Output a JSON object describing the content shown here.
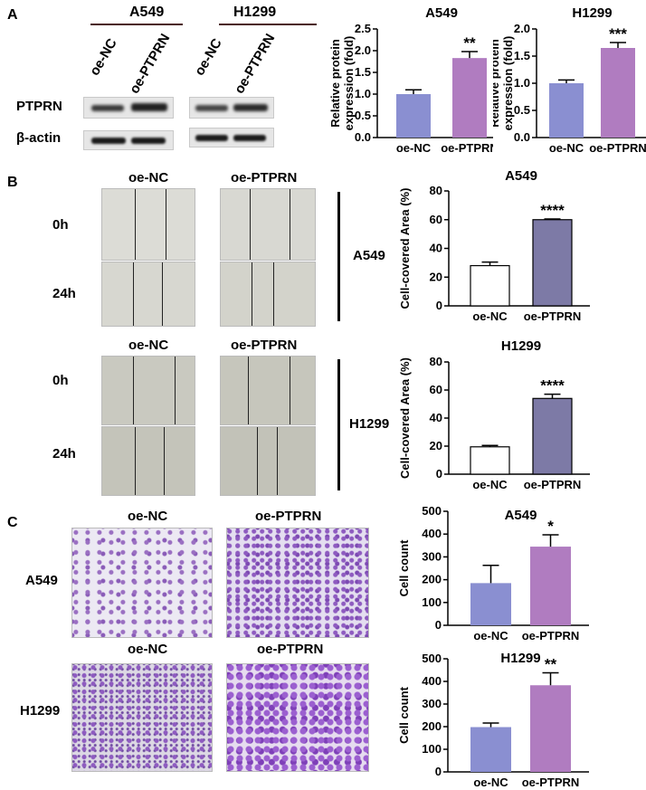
{
  "panelA": {
    "letter": "A",
    "lines": [
      "A549",
      "H1299"
    ],
    "lanes": [
      "oe-NC",
      "oe-PTPRN",
      "oe-NC",
      "oe-PTPRN"
    ],
    "rows": [
      "PTPRN",
      "β-actin"
    ]
  },
  "panelB": {
    "letter": "B",
    "groups": [
      "oe-NC",
      "oe-PTPRN"
    ],
    "times": [
      "0h",
      "24h"
    ],
    "lines": [
      "A549",
      "H1299"
    ]
  },
  "panelC": {
    "letter": "C",
    "groups": [
      "oe-NC",
      "oe-PTPRN"
    ],
    "lines": [
      "A549",
      "H1299"
    ]
  },
  "chart_data": [
    {
      "id": "a549-protein",
      "type": "bar",
      "title": "A549",
      "categories": [
        "oe-NC",
        "oe-PTPRN"
      ],
      "values": [
        1.0,
        1.83
      ],
      "errors": [
        0.1,
        0.15
      ],
      "ylabel": "Relative protein expression (fold)",
      "ylim": [
        0,
        2.5
      ],
      "ticks": [
        "0.0",
        "0.5",
        "1.0",
        "1.5",
        "2.0",
        "2.5"
      ],
      "significance": "**",
      "colors": [
        "#8a8fd1",
        "#b07cc0"
      ],
      "style": "filled"
    },
    {
      "id": "h1299-protein",
      "type": "bar",
      "title": "H1299",
      "categories": [
        "oe-NC",
        "oe-PTPRN"
      ],
      "values": [
        1.0,
        1.65
      ],
      "errors": [
        0.06,
        0.1
      ],
      "ylabel": "Relative protein expression (fold)",
      "ylim": [
        0,
        2.0
      ],
      "ticks": [
        "0.0",
        "0.5",
        "1.0",
        "1.5",
        "2.0"
      ],
      "significance": "***",
      "colors": [
        "#8a8fd1",
        "#b07cc0"
      ],
      "style": "filled"
    },
    {
      "id": "a549-wound",
      "type": "bar",
      "title": "A549",
      "categories": [
        "oe-NC",
        "oe-PTPRN"
      ],
      "values": [
        28,
        60
      ],
      "errors": [
        2.5,
        0.5
      ],
      "ylabel": "Cell-covered Area (%)",
      "ylim": [
        0,
        80
      ],
      "ticks": [
        "0",
        "20",
        "40",
        "60",
        "80"
      ],
      "significance": "****",
      "colors": [
        "#ffffff",
        "#7d7aa6"
      ],
      "style": "outlined"
    },
    {
      "id": "h1299-wound",
      "type": "bar",
      "title": "H1299",
      "categories": [
        "oe-NC",
        "oe-PTPRN"
      ],
      "values": [
        19.5,
        54
      ],
      "errors": [
        1,
        3
      ],
      "ylabel": "Cell-covered Area (%)",
      "ylim": [
        0,
        80
      ],
      "ticks": [
        "0",
        "20",
        "40",
        "60",
        "80"
      ],
      "significance": "****",
      "colors": [
        "#ffffff",
        "#7d7aa6"
      ],
      "style": "outlined"
    },
    {
      "id": "a549-transwell",
      "type": "bar",
      "title": "A549",
      "categories": [
        "oe-NC",
        "oe-PTPRN"
      ],
      "values": [
        185,
        345
      ],
      "errors": [
        78,
        52
      ],
      "ylabel": "Cell count",
      "ylim": [
        0,
        500
      ],
      "ticks": [
        "0",
        "100",
        "200",
        "300",
        "400",
        "500"
      ],
      "significance": "*",
      "colors": [
        "#8a8fd1",
        "#b07cc0"
      ],
      "style": "filled"
    },
    {
      "id": "h1299-transwell",
      "type": "bar",
      "title": "H1299",
      "categories": [
        "oe-NC",
        "oe-PTPRN"
      ],
      "values": [
        198,
        383
      ],
      "errors": [
        18,
        55
      ],
      "ylabel": "Cell count",
      "ylim": [
        0,
        500
      ],
      "ticks": [
        "0",
        "100",
        "200",
        "300",
        "400",
        "500"
      ],
      "significance": "**",
      "colors": [
        "#8a8fd1",
        "#b07cc0"
      ],
      "style": "filled"
    }
  ]
}
